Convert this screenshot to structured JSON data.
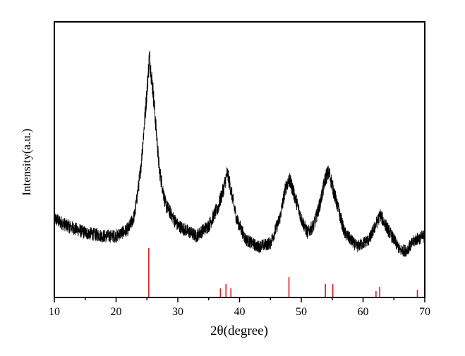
{
  "chart_data": {
    "type": "line",
    "title": "",
    "xlabel": "2θ(degree)",
    "ylabel": "Intensity(a.u.)",
    "xlim": [
      10,
      70
    ],
    "ylim": [
      0,
      100
    ],
    "x_ticks": [
      "10",
      "20",
      "30",
      "40",
      "50",
      "60",
      "70"
    ],
    "y_ticks": [],
    "grid": false,
    "legend": "none",
    "series": [
      {
        "type": "line",
        "color": "#000000",
        "noisy": true,
        "x": [
          10,
          12,
          15,
          18,
          20,
          22,
          23,
          24,
          25,
          25.4,
          26,
          27,
          28,
          30,
          33,
          35,
          36.5,
          37.5,
          38,
          38.5,
          39.5,
          41,
          43,
          45,
          46.5,
          47.5,
          48,
          48.5,
          50,
          51,
          52,
          53,
          54,
          54.5,
          55.5,
          57,
          59,
          61,
          62,
          62.8,
          64,
          66,
          67,
          68.5,
          70
        ],
        "y": [
          28.6,
          26.1,
          23.5,
          22.3,
          22.3,
          24.8,
          29.9,
          46.5,
          74.7,
          87.5,
          74.7,
          46.5,
          33.8,
          26.1,
          22.3,
          26.1,
          32.5,
          40.2,
          45.3,
          40.2,
          28.6,
          21.0,
          18.4,
          19.7,
          28.6,
          40.2,
          42.7,
          40.2,
          28.6,
          23.5,
          26.1,
          33.8,
          44.0,
          45.3,
          36.3,
          23.5,
          18.4,
          21.0,
          26.1,
          29.9,
          24.8,
          17.1,
          17.1,
          21.0,
          22.3
        ]
      },
      {
        "type": "stick",
        "color": "#e8141c",
        "x": [
          25.3,
          36.9,
          37.8,
          38.6,
          48.0,
          53.9,
          55.1,
          62.1,
          62.7,
          68.8
        ],
        "y": [
          17.9,
          3.3,
          4.9,
          3.3,
          7.4,
          4.9,
          4.9,
          2.3,
          3.8,
          2.8
        ]
      }
    ]
  }
}
